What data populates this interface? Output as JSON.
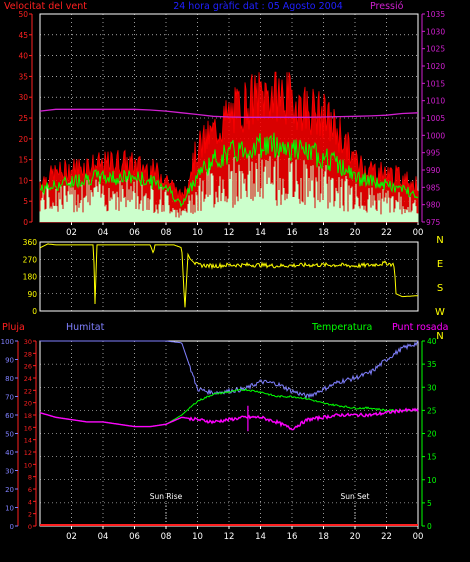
{
  "title": "24 hora gràfic dat : 05 Agosto 2004",
  "colors": {
    "wind_axis": "#ff2020",
    "pressure_axis": "#d020d0",
    "title": "#2020ff",
    "wind_gust": "#ff0000",
    "wind_avg": "#00ff00",
    "wind_speed": "#ccffcc",
    "direction": "#ffff00",
    "rain": "#ff2020",
    "humidity": "#8080ff",
    "temperature": "#00ff00",
    "dewpoint": "#ff00ff",
    "grid": "#ffffff",
    "frame": "#ffffff"
  },
  "x_ticks": [
    "02",
    "04",
    "06",
    "08",
    "10",
    "12",
    "14",
    "16",
    "18",
    "20",
    "22",
    "00"
  ],
  "chart_data": [
    {
      "type": "line",
      "name": "wind-pressure",
      "left_label": "Velocitat del vent",
      "right_label": "Pressió",
      "left_ticks": [
        "0",
        "5",
        "10",
        "15",
        "20",
        "25",
        "30",
        "35",
        "40",
        "45",
        "50"
      ],
      "right_ticks": [
        "975",
        "980",
        "985",
        "990",
        "995",
        "1000",
        "1005",
        "1010",
        "1015",
        "1020",
        "1025",
        "1030",
        "1035"
      ],
      "ylim_left": [
        0,
        50
      ],
      "ylim_right": [
        975,
        1035
      ],
      "x_hours": [
        0,
        1,
        2,
        3,
        4,
        5,
        6,
        7,
        8,
        9,
        10,
        11,
        12,
        13,
        14,
        15,
        16,
        17,
        18,
        19,
        20,
        21,
        22,
        23,
        24
      ],
      "series": [
        {
          "key": "gust",
          "values": [
            10,
            12,
            13,
            14,
            14,
            15,
            14,
            13,
            11,
            6,
            18,
            22,
            26,
            29,
            31,
            32,
            30,
            28,
            26,
            22,
            15,
            13,
            12,
            11,
            9
          ]
        },
        {
          "key": "avg",
          "values": [
            8,
            9,
            10,
            11,
            11,
            11,
            11,
            10,
            9,
            4,
            12,
            15,
            17,
            18,
            19,
            19,
            18,
            17,
            16,
            14,
            11,
            10,
            9,
            8,
            7
          ]
        },
        {
          "key": "speed",
          "values": [
            6,
            7,
            7,
            8,
            8,
            8,
            8,
            7,
            6,
            2,
            8,
            10,
            11,
            12,
            12,
            12,
            11,
            11,
            10,
            9,
            7,
            6,
            6,
            5,
            4
          ]
        },
        {
          "key": "pressure",
          "values": [
            1007,
            1007.5,
            1007.5,
            1007.5,
            1007.5,
            1007.5,
            1007.5,
            1007.3,
            1007,
            1006.5,
            1006,
            1005.5,
            1005.3,
            1005.2,
            1005.2,
            1005.2,
            1005.2,
            1005.2,
            1005.3,
            1005.4,
            1005.5,
            1005.6,
            1005.8,
            1006.3,
            1006.5
          ]
        }
      ]
    },
    {
      "type": "line",
      "name": "wind-direction",
      "left_ticks": [
        "0",
        "90",
        "180",
        "270",
        "360"
      ],
      "right_ticks": [
        "N",
        "W",
        "S",
        "E",
        "N"
      ],
      "ylim": [
        0,
        360
      ],
      "series": [
        {
          "key": "direction",
          "x": [
            0,
            0.5,
            1,
            2,
            3,
            3.4,
            3.5,
            3.6,
            4,
            5,
            6,
            7,
            7.2,
            7.3,
            7.4,
            8,
            8.5,
            9,
            9.2,
            9.4,
            9.5,
            9.8,
            10,
            11,
            12,
            13,
            14,
            15,
            16,
            17,
            18,
            19,
            20,
            21,
            22,
            22.5,
            22.6,
            23,
            24
          ],
          "values": [
            330,
            350,
            345,
            345,
            345,
            345,
            10,
            345,
            345,
            345,
            345,
            345,
            300,
            345,
            345,
            345,
            345,
            330,
            10,
            300,
            275,
            250,
            240,
            235,
            240,
            240,
            240,
            235,
            238,
            240,
            240,
            240,
            235,
            240,
            250,
            240,
            90,
            75,
            80
          ]
        }
      ]
    },
    {
      "type": "line",
      "name": "humidity-temperature",
      "labels": {
        "rain": "Pluja",
        "humidity": "Humitat",
        "temperature": "Temperatura",
        "dewpoint": "Punt rosada"
      },
      "left_ticks_rain": [
        "0",
        "2",
        "4",
        "6",
        "8",
        "10",
        "12",
        "14",
        "16",
        "18",
        "20",
        "22",
        "24",
        "26",
        "28",
        "30"
      ],
      "left_ticks_humidity": [
        "0",
        "10",
        "20",
        "30",
        "40",
        "50",
        "60",
        "70",
        "80",
        "90",
        "100"
      ],
      "right_ticks": [
        "0",
        "5",
        "10",
        "15",
        "20",
        "25",
        "30",
        "35",
        "40"
      ],
      "ylim_humidity": [
        0,
        100
      ],
      "ylim_temp": [
        0,
        40
      ],
      "annotations": [
        {
          "text": "Sun Rise",
          "x_hour": 8
        },
        {
          "text": "Sun Set",
          "x_hour": 20
        }
      ],
      "x_hours": [
        0,
        1,
        2,
        3,
        4,
        5,
        6,
        7,
        8,
        9,
        10,
        11,
        12,
        13,
        14,
        15,
        16,
        17,
        18,
        19,
        20,
        21,
        22,
        23,
        24
      ],
      "series": [
        {
          "key": "humidity",
          "values": [
            100,
            100,
            100,
            100,
            100,
            100,
            100,
            100,
            100,
            99,
            74,
            72,
            73,
            74,
            78,
            77,
            73,
            70,
            74,
            78,
            80,
            83,
            90,
            96,
            99
          ]
        },
        {
          "key": "temperature",
          "values": [
            24.5,
            23.5,
            23,
            22.5,
            22.5,
            22,
            21.5,
            21.5,
            22,
            24,
            27,
            28.5,
            29,
            29.5,
            29,
            28,
            28,
            27.5,
            26.5,
            26,
            25.5,
            25.5,
            25,
            25,
            25
          ]
        },
        {
          "key": "dewpoint",
          "values": [
            24.5,
            23.5,
            23,
            22.5,
            22.5,
            22,
            21.5,
            21.5,
            22,
            23.5,
            23,
            22.5,
            23,
            23.5,
            23.5,
            22.5,
            21,
            23,
            23.5,
            24,
            24,
            24,
            24.5,
            25,
            25
          ]
        },
        {
          "key": "rain",
          "values": [
            0,
            0,
            0,
            0,
            0,
            0,
            0,
            0,
            0,
            0,
            0,
            0,
            0,
            0,
            0,
            0,
            0,
            0,
            0,
            0,
            0,
            0,
            0,
            0,
            0
          ]
        }
      ]
    }
  ]
}
